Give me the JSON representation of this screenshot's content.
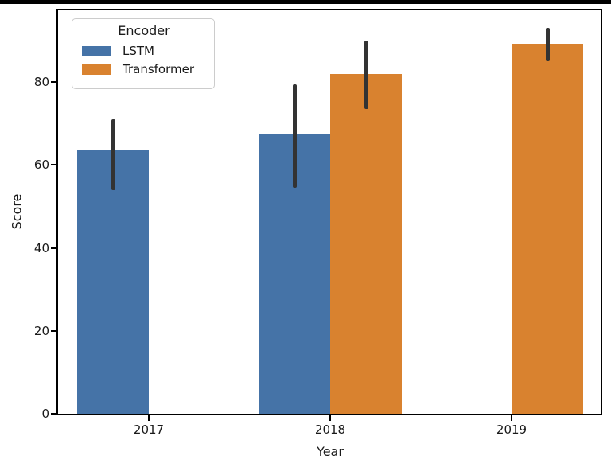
{
  "window": {
    "top_border_color": "#000000"
  },
  "chart_data": {
    "type": "bar",
    "title": "",
    "xlabel": "Year",
    "ylabel": "Score",
    "categories": [
      "2017",
      "2018",
      "2019"
    ],
    "yticks": [
      0,
      20,
      40,
      60,
      80
    ],
    "ylim": [
      0,
      97.3
    ],
    "grid": false,
    "legend": {
      "title": "Encoder",
      "position": "upper-left"
    },
    "series": [
      {
        "name": "LSTM",
        "color": "#4573A7",
        "values": [
          63.5,
          67.5,
          null
        ],
        "error_bars": [
          [
            54,
            71
          ],
          [
            54.5,
            79.5
          ],
          null
        ]
      },
      {
        "name": "Transformer",
        "color": "#D9822F",
        "values": [
          null,
          82,
          89.2
        ],
        "error_bars": [
          null,
          [
            73.5,
            90
          ],
          [
            85,
            93
          ]
        ]
      }
    ],
    "error_bar_color": "#333333",
    "spine_color": "#000000",
    "text_color": "#1a1a1a"
  }
}
